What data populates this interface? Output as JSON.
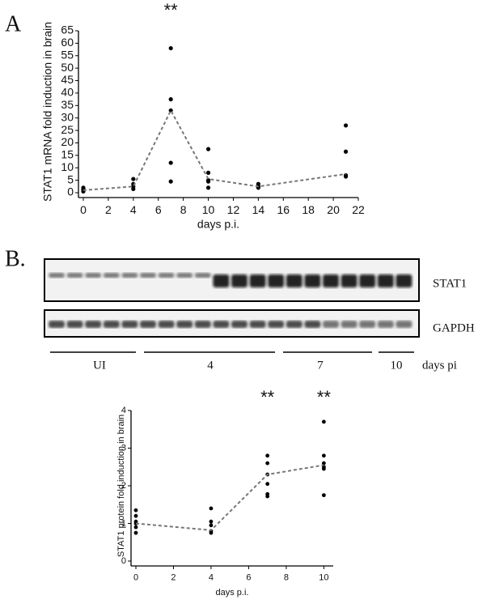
{
  "panel_a": "A",
  "panel_b": "B.",
  "blot": {
    "rows": [
      "STAT1",
      "GAPDH"
    ],
    "groups": [
      "UI",
      "4",
      "7",
      "10"
    ],
    "group_axis": "days pi"
  },
  "chart_data": [
    {
      "type": "scatter",
      "xlabel": "days p.i.",
      "ylabel": "STAT1 mRNA fold induction in brain",
      "xlim": [
        0,
        22
      ],
      "xticks": [
        0,
        2,
        4,
        6,
        8,
        10,
        12,
        14,
        16,
        18,
        20,
        22
      ],
      "ylim": [
        0,
        65
      ],
      "yticks": [
        0,
        5,
        10,
        15,
        20,
        25,
        30,
        35,
        40,
        45,
        50,
        55,
        60,
        65
      ],
      "annotations": [
        {
          "text": "**",
          "x": 7
        }
      ],
      "series": [
        {
          "type": "scatter",
          "color": "#000000",
          "x": [
            0,
            0,
            0,
            0,
            4,
            4,
            4,
            4,
            7,
            7,
            7,
            7,
            7,
            10,
            10,
            10,
            10,
            10,
            14,
            14,
            14,
            21,
            21,
            21,
            21
          ],
          "values": [
            2,
            1.5,
            1,
            0.5,
            5.5,
            3.5,
            2.5,
            1.5,
            58,
            37.5,
            33,
            12,
            4.5,
            17.5,
            8,
            5,
            4.5,
            2,
            3.5,
            2.5,
            2,
            27,
            16.5,
            7,
            6.5
          ]
        },
        {
          "type": "line",
          "color": "#777777",
          "dashed": true,
          "x": [
            0,
            4,
            7,
            10,
            14,
            21
          ],
          "values": [
            1,
            2.5,
            33,
            5.5,
            2.5,
            7.5
          ]
        }
      ]
    },
    {
      "type": "scatter",
      "xlabel": "days p.i.",
      "ylabel": "STAT1 protein fold induction in brain",
      "xlim": [
        0,
        10.5
      ],
      "xticks": [
        0,
        2,
        4,
        6,
        8,
        10
      ],
      "ylim": [
        0,
        4
      ],
      "yticks": [
        0,
        1,
        2,
        3,
        4
      ],
      "annotations": [
        {
          "text": "**",
          "x": 7
        },
        {
          "text": "**",
          "x": 10
        }
      ],
      "series": [
        {
          "type": "scatter",
          "color": "#000000",
          "x": [
            0,
            0,
            0,
            0,
            0,
            0,
            4,
            4,
            4,
            4,
            4,
            7,
            7,
            7,
            7,
            7,
            7,
            10,
            10,
            10,
            10,
            10,
            10
          ],
          "values": [
            1.35,
            1.2,
            1.05,
            1,
            0.9,
            0.75,
            1.4,
            1.05,
            0.95,
            0.8,
            0.75,
            2.8,
            2.6,
            2.3,
            2.05,
            1.78,
            1.72,
            3.7,
            2.8,
            2.6,
            2.5,
            2.45,
            1.75
          ]
        },
        {
          "type": "line",
          "color": "#777777",
          "dashed": true,
          "x": [
            0,
            4,
            7,
            10
          ],
          "values": [
            1,
            0.82,
            2.3,
            2.55
          ]
        }
      ]
    }
  ]
}
